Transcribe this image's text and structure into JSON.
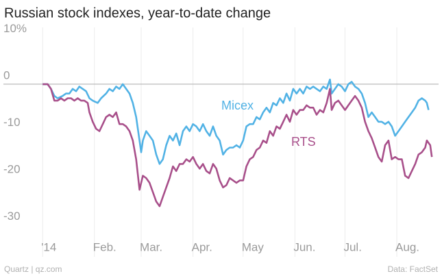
{
  "chart_data": {
    "type": "line",
    "title": "Russian stock indexes, year-to-date change",
    "source": "Data: FactSet",
    "credit": "Quartz | qz.com",
    "xlim": [
      -5,
      237
    ],
    "ylim": [
      -32.4,
      12.1
    ],
    "xticks": [
      {
        "value": 0,
        "label": "'14"
      },
      {
        "value": 31,
        "label": "Feb."
      },
      {
        "value": 59,
        "label": "Mar."
      },
      {
        "value": 90,
        "label": "Apr."
      },
      {
        "value": 120,
        "label": "May"
      },
      {
        "value": 151,
        "label": "Jun."
      },
      {
        "value": 181,
        "label": "Jul."
      },
      {
        "value": 212,
        "label": "Aug."
      }
    ],
    "yticks": [
      {
        "value": 10,
        "label": "10%"
      },
      0,
      -10,
      -20,
      -30
    ],
    "grid": "x",
    "zero_line": true,
    "series": [
      {
        "name": "Micex",
        "color": "#51b2e5",
        "x": [
          0,
          3,
          5,
          7,
          9,
          12,
          14,
          16,
          18,
          20,
          22,
          24,
          26,
          28,
          30,
          33,
          35,
          38,
          40,
          42,
          44,
          46,
          48,
          50,
          52,
          54,
          56,
          58,
          59,
          60,
          62,
          64,
          66,
          68,
          70,
          72,
          74,
          76,
          78,
          80,
          82,
          84,
          86,
          88,
          90,
          92,
          94,
          96,
          98,
          100,
          102,
          104,
          106,
          108,
          110,
          112,
          114,
          116,
          118,
          120,
          122,
          124,
          126,
          128,
          130,
          132,
          134,
          136,
          138,
          140,
          142,
          144,
          146,
          148,
          150,
          152,
          154,
          156,
          158,
          160,
          162,
          164,
          166,
          168,
          170,
          172,
          173,
          175,
          177,
          179,
          181,
          183,
          185,
          187,
          189,
          191,
          193,
          195,
          197,
          199,
          201,
          203,
          205,
          207,
          209,
          211,
          213,
          215,
          217,
          219,
          221,
          223,
          225,
          227,
          229,
          230,
          231
        ],
        "values": [
          0,
          0,
          -1,
          -2.5,
          -3,
          -2.5,
          -2,
          -2,
          -1,
          -1.5,
          -0.5,
          -1,
          -1.5,
          -3,
          -3.5,
          -4,
          -3,
          -2,
          -1,
          -1.5,
          -0.5,
          -1,
          0,
          -1,
          -2,
          -4,
          -7,
          -12,
          -14.5,
          -12,
          -10,
          -11,
          -12,
          -15,
          -17,
          -16,
          -13,
          -11,
          -12,
          -10.5,
          -13,
          -10,
          -9,
          -10,
          -8.5,
          -9,
          -10,
          -8.5,
          -10,
          -11,
          -9,
          -11,
          -12,
          -15,
          -14,
          -13.5,
          -13.5,
          -13,
          -13.5,
          -12,
          -9,
          -8.5,
          -8.5,
          -7,
          -7.5,
          -6,
          -5,
          -6,
          -4,
          -4.5,
          -3,
          -4,
          -2,
          -3.5,
          -1,
          -2,
          -1,
          -2,
          -0.5,
          -1,
          -0.5,
          -1,
          -1.5,
          -0.5,
          -1,
          1,
          -2,
          -1,
          0,
          -0.5,
          -1.5,
          0,
          0.5,
          -0.5,
          -1,
          -2,
          -4,
          -7,
          -6,
          -7,
          -8,
          -8,
          -8.5,
          -8,
          -9,
          -11,
          -10,
          -9,
          -8,
          -7,
          -6,
          -5,
          -3.5,
          -3,
          -3.5,
          -4,
          -5.5
        ]
      },
      {
        "name": "RTS",
        "color": "#a84f8a",
        "x": [
          0,
          3,
          5,
          7,
          9,
          11,
          13,
          15,
          17,
          19,
          21,
          23,
          25,
          27,
          28,
          30,
          32,
          34,
          36,
          38,
          40,
          42,
          44,
          46,
          48,
          50,
          52,
          54,
          56,
          58,
          60,
          62,
          64,
          66,
          68,
          70,
          72,
          74,
          76,
          78,
          80,
          82,
          84,
          86,
          88,
          90,
          92,
          94,
          96,
          98,
          100,
          102,
          104,
          106,
          108,
          110,
          112,
          114,
          116,
          118,
          120,
          122,
          124,
          126,
          128,
          130,
          132,
          134,
          136,
          138,
          140,
          142,
          144,
          146,
          148,
          150,
          152,
          154,
          156,
          158,
          160,
          162,
          164,
          166,
          168,
          170,
          172,
          173,
          175,
          177,
          179,
          181,
          183,
          185,
          187,
          189,
          191,
          193,
          195,
          197,
          199,
          201,
          203,
          205,
          207,
          209,
          211,
          213,
          215,
          217,
          219,
          221,
          223,
          225,
          227,
          229,
          230,
          231,
          232,
          233
        ],
        "values": [
          0,
          0,
          -1,
          -3.5,
          -3.5,
          -3,
          -3.5,
          -3,
          -3,
          -3.5,
          -3,
          -3.5,
          -3.5,
          -4,
          -6,
          -8,
          -9.5,
          -10,
          -8.5,
          -7,
          -6.5,
          -7,
          -6,
          -8.5,
          -8.5,
          -9,
          -10,
          -12,
          -16,
          -22.5,
          -19.5,
          -20,
          -21,
          -23,
          -25,
          -26,
          -24,
          -22,
          -20,
          -17.5,
          -18.5,
          -17,
          -17,
          -16,
          -16.5,
          -15.5,
          -17,
          -18,
          -17,
          -18.5,
          -19,
          -17,
          -18,
          -20.5,
          -22,
          -21.5,
          -20,
          -20.5,
          -21,
          -20.5,
          -20.5,
          -17.5,
          -16,
          -15.5,
          -14,
          -13.5,
          -12,
          -12.5,
          -10,
          -11,
          -9,
          -9.5,
          -8,
          -6.5,
          -8,
          -5.5,
          -6.5,
          -5.5,
          -5.5,
          -4.5,
          -5,
          -5,
          -6.5,
          -5.5,
          -6,
          -4,
          -1,
          -5.5,
          -4,
          -3.5,
          -4.5,
          -5.5,
          -4.5,
          -3.5,
          -2.5,
          -3.5,
          -5,
          -8,
          -10,
          -11.5,
          -13.5,
          -15.5,
          -16.5,
          -13,
          -12,
          -16,
          -15.5,
          -16,
          -16,
          -19.5,
          -20,
          -18.5,
          -17,
          -15,
          -14.5,
          -13.5,
          -12,
          -12.5,
          -13,
          -15.5
        ]
      }
    ]
  }
}
